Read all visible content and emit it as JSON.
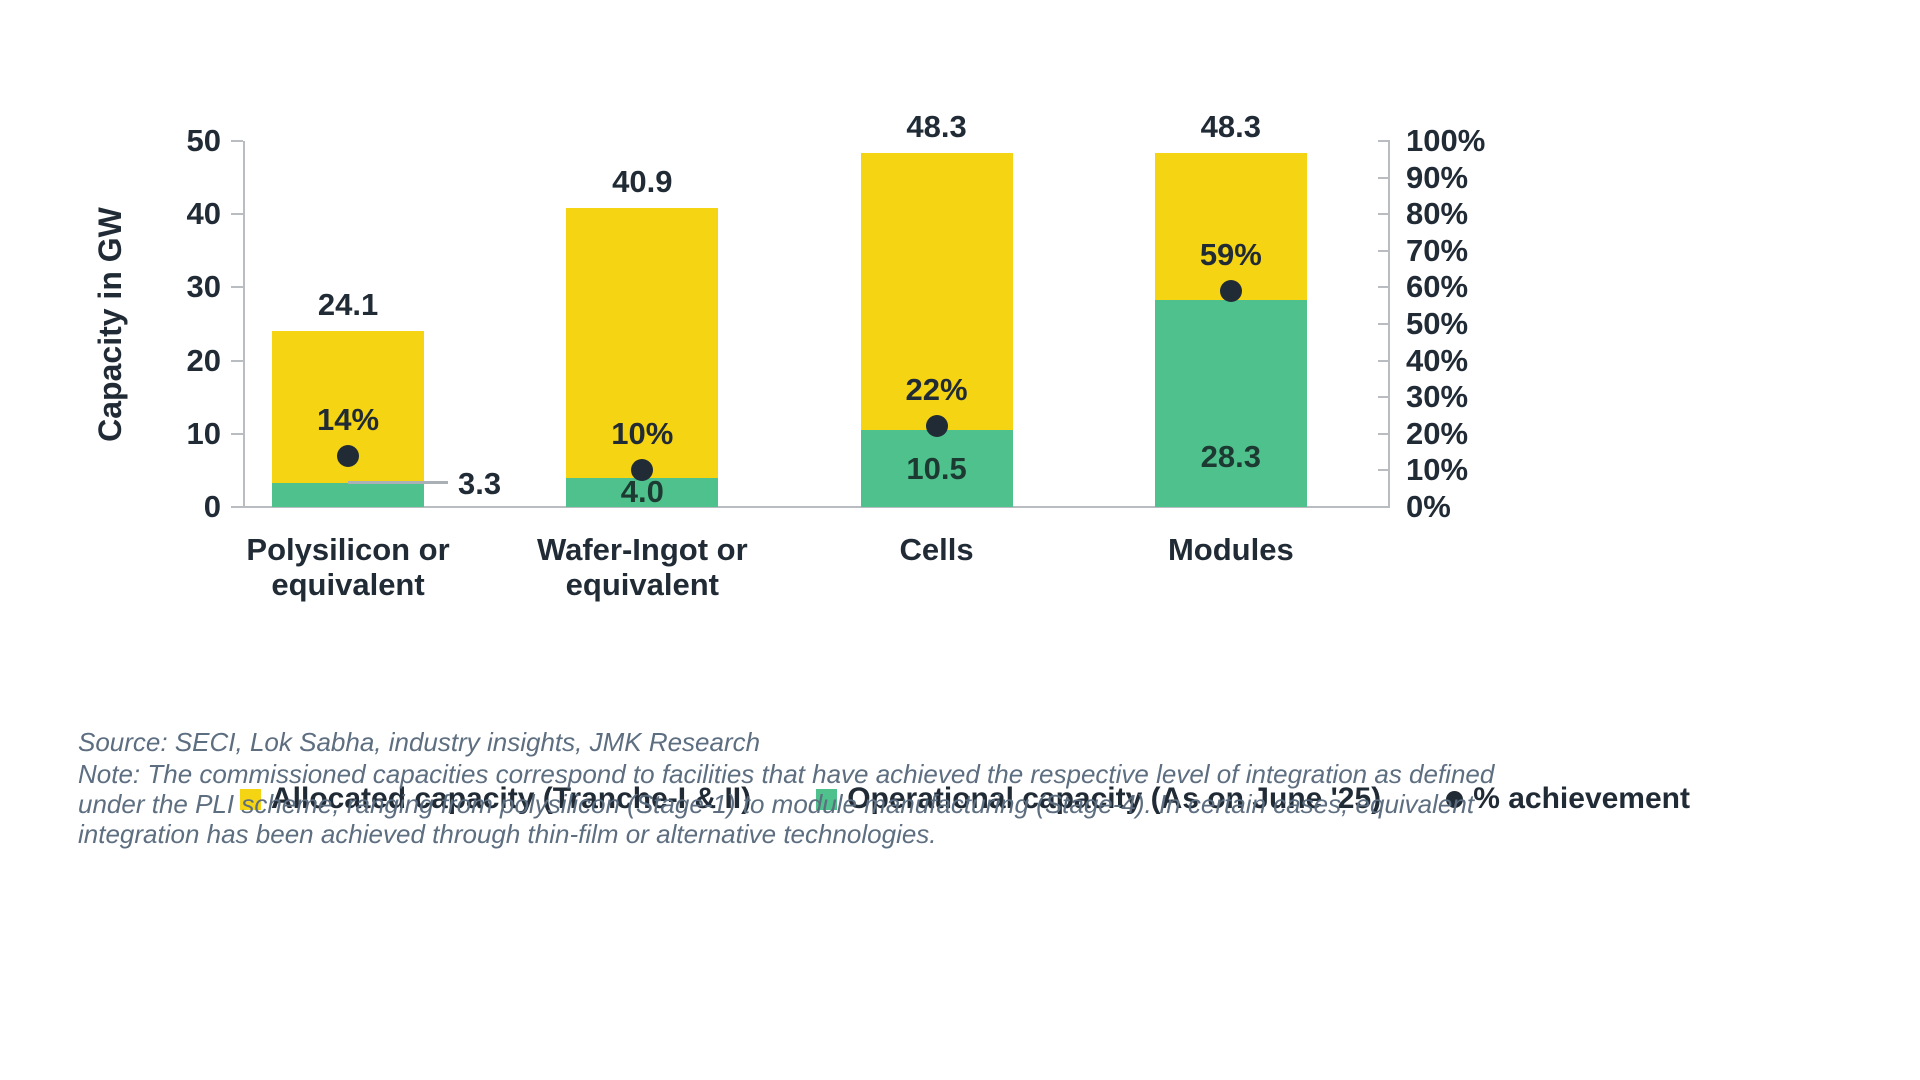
{
  "chart_data": {
    "type": "bar",
    "title": "",
    "left_axis": {
      "label": "Capacity in GW",
      "min": 0,
      "max": 50,
      "ticks": [
        "0",
        "10",
        "20",
        "30",
        "40",
        "50"
      ]
    },
    "right_axis": {
      "min": 0,
      "max": 100,
      "ticks": [
        "0%",
        "10%",
        "20%",
        "30%",
        "40%",
        "50%",
        "60%",
        "70%",
        "80%",
        "90%",
        "100%"
      ]
    },
    "categories": [
      "Polysilicon or equivalent",
      "Wafer-Ingot or equivalent",
      "Cells",
      "Modules"
    ],
    "series": [
      {
        "name": "Allocated capacity (Tranche-I & II)",
        "color": "#f5d413",
        "values": [
          24.1,
          40.9,
          48.3,
          48.3
        ]
      },
      {
        "name": "Operational capacity (As on June '25)",
        "color": "#4fc18c",
        "values": [
          3.3,
          4.0,
          10.5,
          28.3
        ]
      },
      {
        "name": "% achievement",
        "type": "point",
        "color": "#212b36",
        "values_pct": [
          14,
          10,
          22,
          59
        ]
      }
    ],
    "bars": [
      {
        "category_lines": [
          "Polysilicon or",
          "equivalent"
        ],
        "allocated": 24.1,
        "allocated_label": "24.1",
        "operational": 3.3,
        "operational_label": "3.3",
        "operational_label_style": "callout",
        "achievement_pct": 14,
        "achievement_label": "14%"
      },
      {
        "category_lines": [
          "Wafer-Ingot or",
          "equivalent"
        ],
        "allocated": 40.9,
        "allocated_label": "40.9",
        "operational": 4.0,
        "operational_label": "4.0",
        "operational_label_style": "inside",
        "achievement_pct": 10,
        "achievement_label": "10%"
      },
      {
        "category_lines": [
          "Cells"
        ],
        "allocated": 48.3,
        "allocated_label": "48.3",
        "operational": 10.5,
        "operational_label": "10.5",
        "operational_label_style": "inside",
        "achievement_pct": 22,
        "achievement_label": "22%"
      },
      {
        "category_lines": [
          "Modules"
        ],
        "allocated": 48.3,
        "allocated_label": "48.3",
        "operational": 28.3,
        "operational_label": "28.3",
        "operational_label_style": "inside",
        "achievement_pct": 59,
        "achievement_label": "59%"
      }
    ],
    "legend_position": "bottom",
    "grid": false
  },
  "legend": {
    "items": [
      {
        "label": "Allocated capacity (Tranche-I & II)",
        "swatch": "yellow-square",
        "color": "#f5d413"
      },
      {
        "label": "Operational capacity (As on June '25)",
        "swatch": "green-square",
        "color": "#4fc18c"
      },
      {
        "label": "% achievement",
        "swatch": "black-dot",
        "color": "#212b36"
      }
    ]
  },
  "footer": {
    "source": "Source: SECI, Lok Sabha, industry insights, JMK Research",
    "note": "Note: The commissioned capacities correspond to facilities that have achieved the respective level of integration as defined under the PLI scheme, ranging from polysilicon (Stage-1) to module manufacturing (Stage-4). In certain cases, equivalent integration has been achieved through thin-film or alternative technologies."
  },
  "colors": {
    "allocated": "#f5d413",
    "operational": "#4fc18c",
    "achievement_dot": "#212b36",
    "axis": "#b9bdc2",
    "footer_text": "#5d6e80"
  }
}
